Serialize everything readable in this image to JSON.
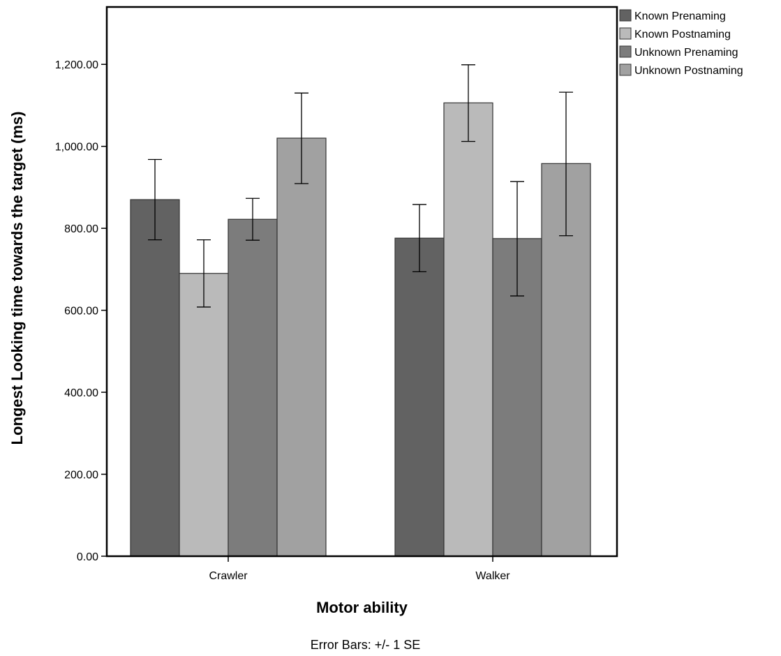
{
  "chart_data": {
    "type": "bar",
    "xlabel": "Motor ability",
    "ylabel": "Longest Looking time towards the target (ms)",
    "categories": [
      "Crawler",
      "Walker"
    ],
    "ylim": [
      0,
      1340
    ],
    "yticks": [
      0,
      200,
      400,
      600,
      800,
      1000,
      1200
    ],
    "ytick_labels": [
      "0.00",
      "200.00",
      "400.00",
      "600.00",
      "800.00",
      "1,000.00",
      "1,200.00"
    ],
    "series": [
      {
        "name": "Known Prenaming",
        "color": "#626262",
        "values": [
          870,
          776
        ],
        "err_low": [
          772,
          694
        ],
        "err_high": [
          968,
          858
        ]
      },
      {
        "name": "Known Postnaming",
        "color": "#bababa",
        "values": [
          690,
          1106
        ],
        "err_low": [
          608,
          1012
        ],
        "err_high": [
          772,
          1199
        ]
      },
      {
        "name": "Unknown Prenaming",
        "color": "#7c7c7c",
        "values": [
          822,
          775
        ],
        "err_low": [
          771,
          635
        ],
        "err_high": [
          873,
          914
        ]
      },
      {
        "name": "Unknown Postnaming",
        "color": "#a1a1a1",
        "values": [
          1020,
          958
        ],
        "err_low": [
          909,
          782
        ],
        "err_high": [
          1130,
          1132
        ]
      }
    ],
    "legend_position": "top-right",
    "grid": false,
    "note": "Error Bars: +/- 1 SE"
  }
}
